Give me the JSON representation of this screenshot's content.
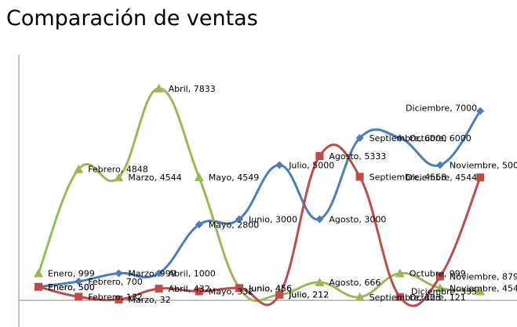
{
  "chart_data": {
    "type": "line",
    "title": "Comparación de ventas",
    "xlabel": "",
    "ylabel": "",
    "categories": [
      "Enero",
      "Febrero",
      "Marzo",
      "Abril",
      "Mayo",
      "Junio",
      "Julio",
      "Agosto",
      "Septiembre",
      "Octubre",
      "Noviembre",
      "Diciembre"
    ],
    "ylim": [
      0,
      8300
    ],
    "smooth": true,
    "data_labels": "category, value",
    "series": [
      {
        "color": "#4a7ebb",
        "marker": "diamond",
        "values": [
          500,
          700,
          999,
          1000,
          2800,
          3000,
          5000,
          3000,
          6000,
          6000,
          5000,
          7000
        ]
      },
      {
        "color": "#be4b48",
        "marker": "square",
        "values": [
          500,
          132,
          32,
          432,
          332,
          456,
          212,
          5333,
          4568,
          121,
          879,
          4544
        ]
      },
      {
        "color": "#98b954",
        "marker": "triangle",
        "values": [
          999,
          4848,
          4544,
          7833,
          4549,
          456,
          212,
          666,
          123,
          999,
          454,
          335
        ]
      }
    ]
  }
}
